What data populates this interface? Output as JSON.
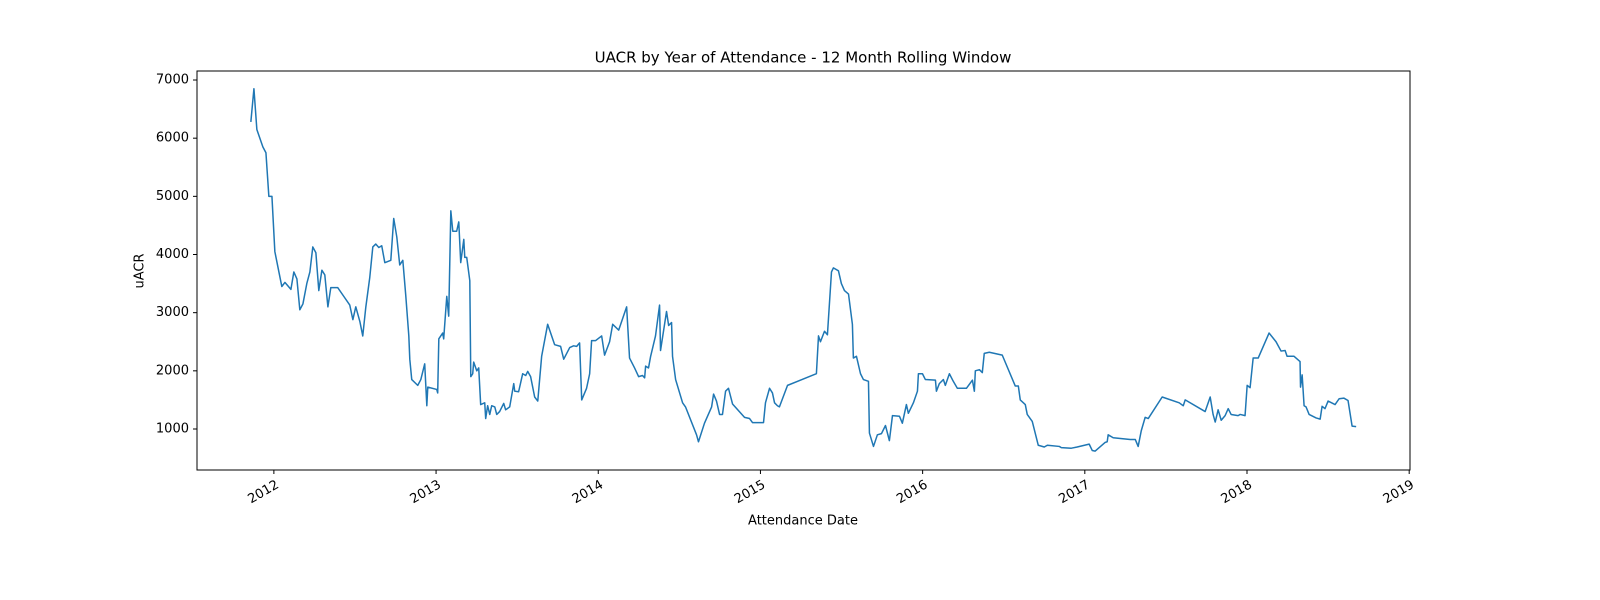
{
  "chart_data": {
    "type": "line",
    "title": "UACR by Year of Attendance - 12 Month Rolling Window",
    "x_label": "Attendance Date",
    "y_label": "uACR",
    "color": "#1f77b4",
    "xlim": [
      2011.526,
      2019.005
    ],
    "xticks": [
      2012,
      2013,
      2014,
      2015,
      2016,
      2017,
      2018,
      2019
    ],
    "ylim": [
      295,
      7155
    ],
    "yticks": [
      1000,
      2000,
      3000,
      4000,
      5000,
      6000,
      7000
    ],
    "grid": false,
    "x": [
      2011.858,
      2011.877,
      2011.895,
      2011.932,
      2011.951,
      2011.969,
      2011.988,
      2012.006,
      2012.031,
      2012.049,
      2012.068,
      2012.105,
      2012.123,
      2012.142,
      2012.16,
      2012.179,
      2012.203,
      2012.222,
      2012.24,
      2012.259,
      2012.277,
      2012.296,
      2012.314,
      2012.333,
      2012.351,
      2012.394,
      2012.431,
      2012.468,
      2012.487,
      2012.505,
      2012.53,
      2012.548,
      2012.567,
      2012.591,
      2012.61,
      2012.628,
      2012.647,
      2012.665,
      2012.684,
      2012.721,
      2012.739,
      2012.758,
      2012.776,
      2012.795,
      2012.813,
      2012.832,
      2012.838,
      2012.85,
      2012.887,
      2012.906,
      2012.93,
      2012.943,
      2012.949,
      2013.004,
      2013.01,
      2013.017,
      2013.041,
      2013.047,
      2013.066,
      2013.078,
      2013.091,
      2013.103,
      2013.127,
      2013.14,
      2013.152,
      2013.171,
      2013.177,
      2013.189,
      2013.208,
      2013.214,
      2013.226,
      2013.232,
      2013.251,
      2013.263,
      2013.275,
      2013.3,
      2013.306,
      2013.318,
      2013.331,
      2013.343,
      2013.362,
      2013.374,
      2013.392,
      2013.417,
      2013.429,
      2013.454,
      2013.479,
      2013.485,
      2013.509,
      2013.534,
      2013.553,
      2013.565,
      2013.583,
      2013.608,
      2013.627,
      2013.651,
      2013.688,
      2013.731,
      2013.768,
      2013.787,
      2013.824,
      2013.848,
      2013.867,
      2013.885,
      2013.898,
      2013.928,
      2013.947,
      2013.959,
      2013.984,
      2014.021,
      2014.039,
      2014.07,
      2014.089,
      2014.126,
      2014.175,
      2014.193,
      2014.224,
      2014.249,
      2014.273,
      2014.286,
      2014.292,
      2014.31,
      2014.323,
      2014.353,
      2014.378,
      2014.384,
      2014.421,
      2014.434,
      2014.452,
      2014.458,
      2014.477,
      2014.52,
      2014.538,
      2014.606,
      2014.618,
      2014.655,
      2014.699,
      2014.711,
      2014.729,
      2014.748,
      2014.766,
      2014.785,
      2014.803,
      2014.828,
      2014.902,
      2014.933,
      2014.951,
      2015.019,
      2015.031,
      2015.056,
      2015.074,
      2015.087,
      2015.105,
      2015.117,
      2015.167,
      2015.345,
      2015.358,
      2015.37,
      2015.395,
      2015.413,
      2015.438,
      2015.45,
      2015.481,
      2015.499,
      2015.518,
      2015.543,
      2015.567,
      2015.573,
      2015.592,
      2015.617,
      2015.635,
      2015.666,
      2015.672,
      2015.697,
      2015.721,
      2015.746,
      2015.771,
      2015.795,
      2015.814,
      2015.857,
      2015.875,
      2015.9,
      2015.912,
      2015.943,
      2015.968,
      2015.974,
      2015.999,
      2016.017,
      2016.079,
      2016.085,
      2016.103,
      2016.128,
      2016.14,
      2016.165,
      2016.189,
      2016.214,
      2016.27,
      2016.307,
      2016.319,
      2016.325,
      2016.35,
      2016.368,
      2016.38,
      2016.411,
      2016.491,
      2016.571,
      2016.59,
      2016.602,
      2016.633,
      2016.645,
      2016.676,
      2016.713,
      2016.75,
      2016.769,
      2016.843,
      2016.855,
      2016.917,
      2016.953,
      2017.027,
      2017.046,
      2017.064,
      2017.126,
      2017.138,
      2017.144,
      2017.175,
      2017.28,
      2017.311,
      2017.329,
      2017.348,
      2017.372,
      2017.391,
      2017.477,
      2017.582,
      2017.607,
      2017.619,
      2017.742,
      2017.773,
      2017.791,
      2017.804,
      2017.822,
      2017.841,
      2017.865,
      2017.884,
      2017.902,
      2017.945,
      2017.958,
      2017.988,
      2018.001,
      2018.019,
      2018.038,
      2018.069,
      2018.136,
      2018.179,
      2018.21,
      2018.235,
      2018.247,
      2018.29,
      2018.327,
      2018.33,
      2018.34,
      2018.352,
      2018.364,
      2018.383,
      2018.426,
      2018.451,
      2018.463,
      2018.481,
      2018.5,
      2018.543,
      2018.568,
      2018.598,
      2018.623,
      2018.648,
      2018.673
    ],
    "values": [
      6280,
      6850,
      6150,
      5850,
      5750,
      5000,
      5000,
      4050,
      3700,
      3450,
      3520,
      3400,
      3700,
      3580,
      3050,
      3150,
      3500,
      3700,
      4130,
      4030,
      3380,
      3730,
      3650,
      3100,
      3430,
      3430,
      3280,
      3130,
      2880,
      3100,
      2850,
      2600,
      3100,
      3600,
      4130,
      4180,
      4120,
      4150,
      3860,
      3900,
      4620,
      4300,
      3820,
      3900,
      3300,
      2600,
      2200,
      1850,
      1750,
      1850,
      2120,
      1400,
      1720,
      1680,
      1620,
      2550,
      2650,
      2550,
      3280,
      2940,
      4750,
      4400,
      4400,
      4560,
      3860,
      4260,
      3950,
      3950,
      3550,
      1900,
      1950,
      2150,
      2000,
      2050,
      1420,
      1450,
      1180,
      1400,
      1250,
      1400,
      1380,
      1250,
      1300,
      1440,
      1330,
      1380,
      1780,
      1650,
      1640,
      1950,
      1920,
      1990,
      1900,
      1550,
      1480,
      2250,
      2800,
      2450,
      2420,
      2200,
      2400,
      2430,
      2420,
      2480,
      1500,
      1700,
      1950,
      2520,
      2520,
      2600,
      2270,
      2500,
      2800,
      2700,
      3100,
      2220,
      2050,
      1900,
      1920,
      1880,
      2080,
      2050,
      2250,
      2600,
      3130,
      2350,
      3020,
      2780,
      2830,
      2250,
      1850,
      1450,
      1380,
      900,
      780,
      1100,
      1380,
      1600,
      1480,
      1250,
      1250,
      1650,
      1700,
      1430,
      1200,
      1180,
      1110,
      1110,
      1450,
      1700,
      1620,
      1450,
      1400,
      1380,
      1750,
      1950,
      2600,
      2500,
      2680,
      2620,
      3700,
      3770,
      3720,
      3500,
      3380,
      3320,
      2800,
      2220,
      2250,
      1950,
      1850,
      1820,
      930,
      700,
      900,
      920,
      1060,
      800,
      1230,
      1220,
      1100,
      1420,
      1270,
      1450,
      1650,
      1950,
      1950,
      1850,
      1840,
      1650,
      1780,
      1850,
      1750,
      1950,
      1820,
      1700,
      1700,
      1840,
      1650,
      2000,
      2020,
      1970,
      2300,
      2320,
      2270,
      1740,
      1740,
      1500,
      1420,
      1250,
      1130,
      720,
      690,
      720,
      700,
      680,
      670,
      690,
      740,
      630,
      620,
      770,
      780,
      900,
      850,
      820,
      820,
      700,
      970,
      1200,
      1180,
      1550,
      1450,
      1400,
      1500,
      1300,
      1550,
      1250,
      1120,
      1330,
      1150,
      1230,
      1350,
      1250,
      1230,
      1250,
      1230,
      1750,
      1710,
      2220,
      2220,
      2650,
      2500,
      2340,
      2350,
      2250,
      2250,
      2160,
      1720,
      1930,
      1400,
      1380,
      1250,
      1190,
      1170,
      1390,
      1350,
      1480,
      1420,
      1520,
      1530,
      1490,
      1050,
      1040
    ]
  }
}
